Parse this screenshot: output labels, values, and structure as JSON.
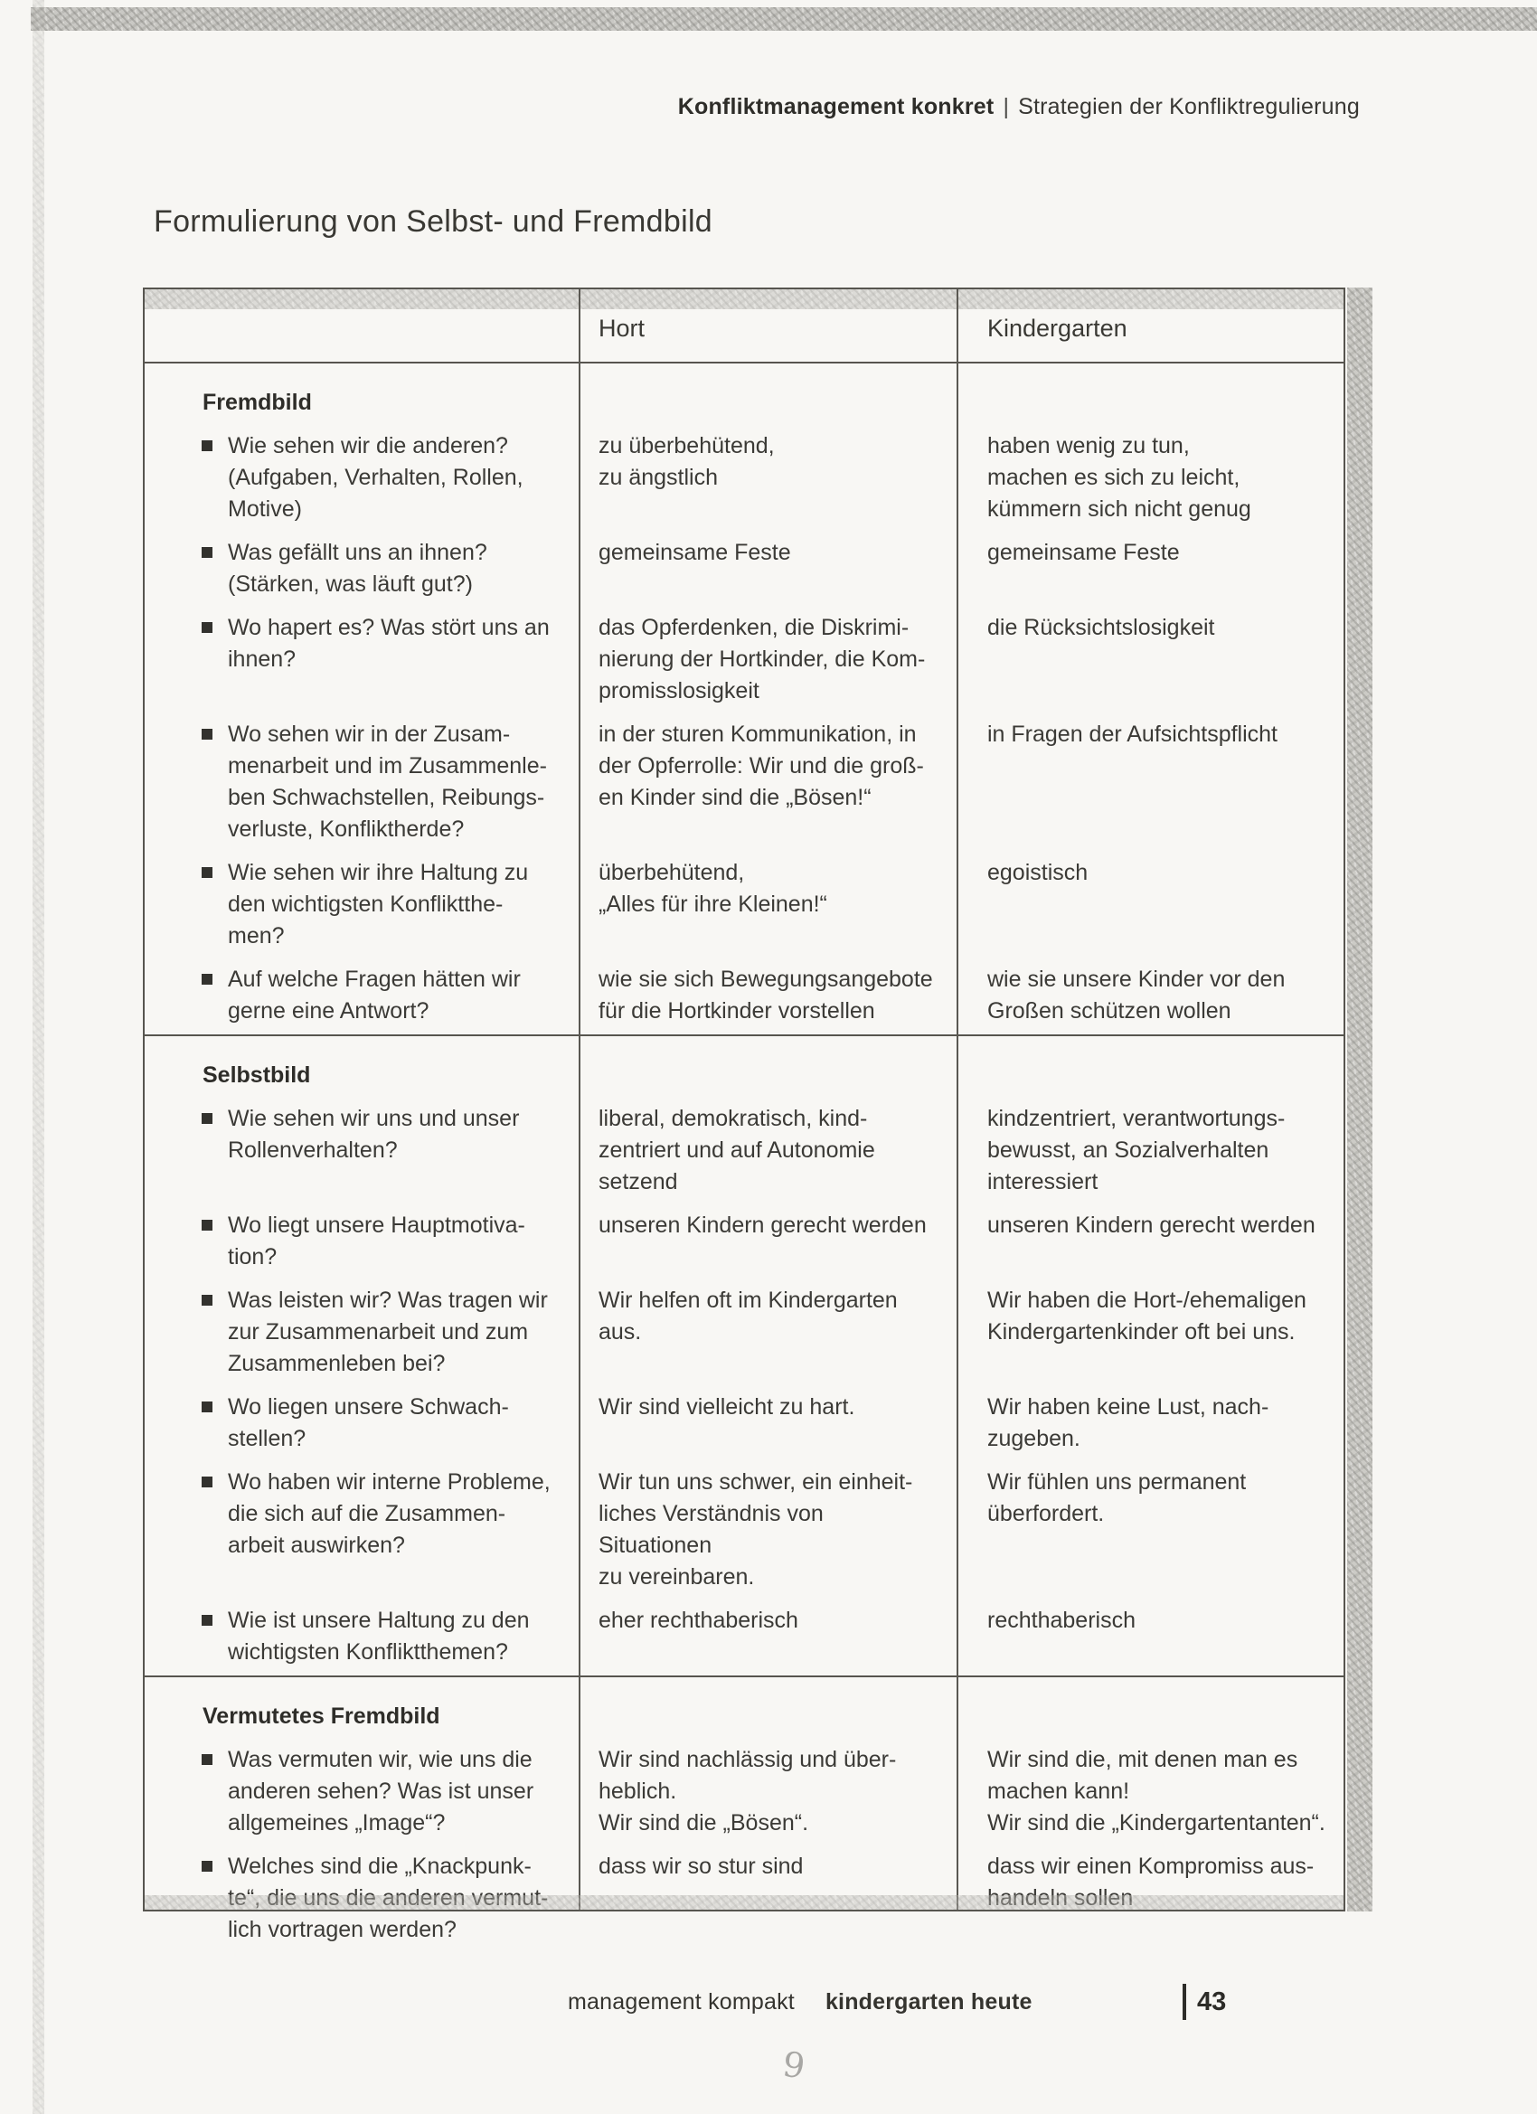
{
  "header": {
    "bold": "Konfliktmanagement konkret",
    "separator": "|",
    "regular": "Strategien der Konfliktregulierung"
  },
  "title": "Formulierung von Selbst- und Fremdbild",
  "table": {
    "col_headers": {
      "hort": "Hort",
      "kindergarten": "Kindergarten"
    },
    "sections": [
      {
        "heading": "Fremdbild",
        "rows": [
          {
            "question": "Wie sehen wir die anderen?\n(Aufgaben, Verhalten, Rollen,\nMotive)",
            "hort": "zu überbehütend,\nzu ängstlich",
            "kindergarten": "haben wenig zu tun,\nmachen es sich zu leicht,\nkümmern sich nicht genug"
          },
          {
            "question": "Was gefällt uns an ihnen?\n(Stärken, was läuft gut?)",
            "hort": "gemeinsame Feste",
            "kindergarten": "gemeinsame Feste"
          },
          {
            "question": "Wo hapert es? Was stört uns an\nihnen?",
            "hort": "das Opferdenken, die Diskrimi-\nnierung der Hortkinder, die Kom-\npromisslosigkeit",
            "kindergarten": "die Rücksichtslosigkeit"
          },
          {
            "question": "Wo sehen wir in der Zusam-\nmenarbeit und im Zusammenle-\nben Schwachstellen, Reibungs-\nverluste, Konfliktherde?",
            "hort": "in der sturen Kommunikation, in\nder Opferrolle: Wir und die groß-\nen Kinder sind die „Bösen!“",
            "kindergarten": "in Fragen der Aufsichtspflicht"
          },
          {
            "question": "Wie sehen wir ihre Haltung zu\nden wichtigsten Konfliktthe-\nmen?",
            "hort": "überbehütend,\n„Alles für ihre Kleinen!“",
            "kindergarten": "egoistisch"
          },
          {
            "question": "Auf welche Fragen hätten wir\ngerne eine Antwort?",
            "hort": "wie sie sich Bewegungsangebote\nfür die Hortkinder vorstellen",
            "kindergarten": "wie sie unsere Kinder vor den\nGroßen schützen wollen"
          }
        ]
      },
      {
        "heading": "Selbstbild",
        "rows": [
          {
            "question": "Wie sehen wir uns und unser\nRollenverhalten?",
            "hort": "liberal, demokratisch, kind-\nzentriert und auf Autonomie\nsetzend",
            "kindergarten": "kindzentriert, verantwortungs-\nbewusst, an Sozialverhalten\ninteressiert"
          },
          {
            "question": "Wo liegt unsere Hauptmotiva-\ntion?",
            "hort": "unseren Kindern gerecht werden",
            "kindergarten": "unseren Kindern gerecht werden"
          },
          {
            "question": "Was leisten wir? Was tragen wir\nzur Zusammenarbeit und zum\nZusammenleben bei?",
            "hort": "Wir helfen oft im Kindergarten\naus.",
            "kindergarten": "Wir haben die Hort-/ehemaligen\nKindergartenkinder oft bei uns."
          },
          {
            "question": "Wo liegen unsere Schwach-\nstellen?",
            "hort": "Wir sind vielleicht zu hart.",
            "kindergarten": "Wir haben keine Lust, nach-\nzugeben."
          },
          {
            "question": "Wo haben wir interne Probleme,\ndie sich auf die Zusammen-\narbeit auswirken?",
            "hort": "Wir tun uns schwer, ein einheit-\nliches Verständnis von Situationen\nzu vereinbaren.",
            "kindergarten": "Wir fühlen uns permanent\nüberfordert."
          },
          {
            "question": "Wie ist unsere Haltung zu den\nwichtigsten Konfliktthemen?",
            "hort": "eher rechthaberisch",
            "kindergarten": "rechthaberisch"
          }
        ]
      },
      {
        "heading": "Vermutetes Fremdbild",
        "rows": [
          {
            "question": "Was vermuten wir, wie uns die\nanderen sehen? Was ist unser\nallgemeines „Image“?",
            "hort": "Wir sind nachlässig und über-\nheblich.\nWir sind die „Bösen“.",
            "kindergarten": "Wir sind die, mit denen man es\nmachen kann!\nWir sind die „Kindergartentanten“."
          },
          {
            "question": "Welches sind die „Knackpunk-\nte“, die uns die anderen vermut-\nlich vortragen werden?",
            "hort": "dass wir so stur sind",
            "kindergarten": "dass wir einen Kompromiss aus-\nhandeln sollen"
          }
        ]
      }
    ]
  },
  "footer": {
    "imprint": "management kompakt",
    "brand": "kindergarten heute",
    "page_number": "43"
  },
  "artifacts": {
    "pencil_mark": "9"
  }
}
